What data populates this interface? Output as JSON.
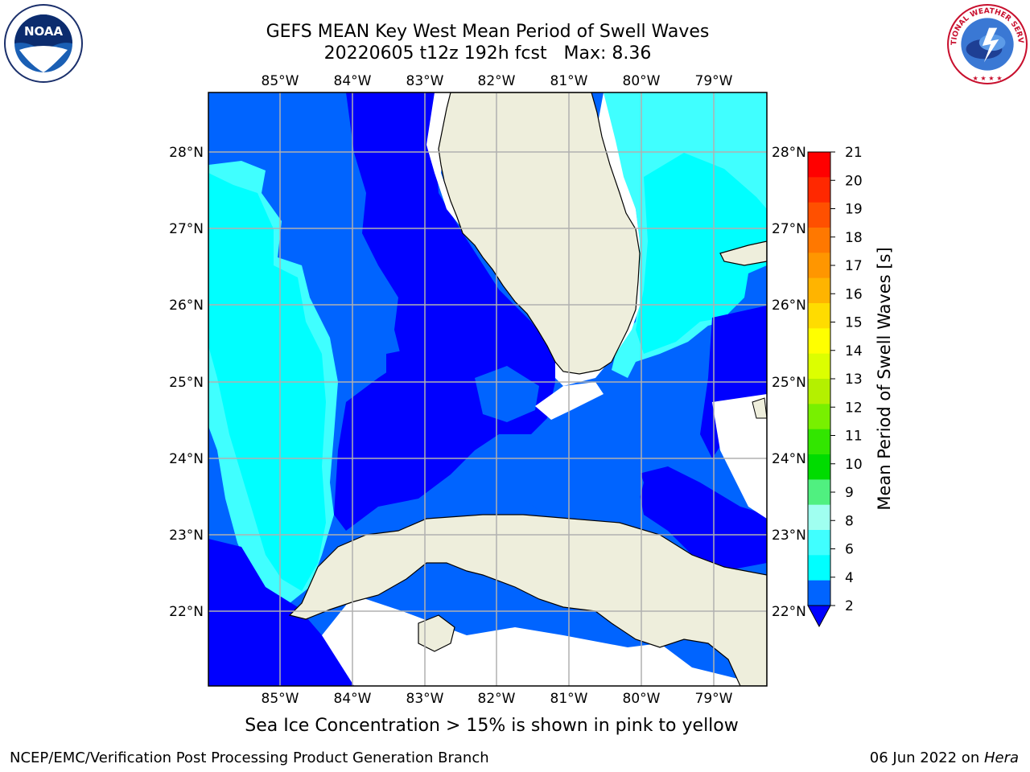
{
  "header": {
    "title_line1": "GEFS MEAN Key West Mean Period of Swell Waves",
    "title_line2": "20220605 t12z 192h fcst   Max: 8.36"
  },
  "logos": {
    "left": "noaa-logo",
    "left_text": "NOAA",
    "right": "national-weather-service-logo",
    "right_text": "NATIONAL WEATHER SERVICE"
  },
  "map": {
    "lon_labels": [
      "85°W",
      "84°W",
      "83°W",
      "82°W",
      "81°W",
      "80°W",
      "79°W"
    ],
    "lat_labels": [
      "28°N",
      "27°N",
      "26°N",
      "25°N",
      "24°N",
      "23°N",
      "22°N"
    ],
    "colors": {
      "land": "#eeeedc",
      "deep_blue": "#0000ff",
      "mid_blue": "#0064ff",
      "cyan": "#00ffff",
      "light_cyan": "#40ffff",
      "no_data": "#ffffff",
      "grid": "#b0b0b0"
    }
  },
  "colorbar": {
    "title": "Mean Period of Swell Waves [s]",
    "labels": [
      "21",
      "20",
      "19",
      "18",
      "17",
      "16",
      "15",
      "14",
      "13",
      "12",
      "11",
      "10",
      "9",
      "8",
      "6",
      "4",
      "2"
    ],
    "colors": [
      "#ff0000",
      "#ff2800",
      "#ff5000",
      "#ff7800",
      "#ff9600",
      "#ffb400",
      "#ffdc00",
      "#ffff00",
      "#dcff00",
      "#b4f000",
      "#78f000",
      "#32e600",
      "#00dc00",
      "#50f080",
      "#a0fff0",
      "#40ffff",
      "#00ffff",
      "#0064ff"
    ],
    "under_color": "#0000ff"
  },
  "footer": {
    "note": "Sea Ice Concentration > 15% is shown in pink to yellow",
    "credit_left": "NCEP/EMC/Verification Post Processing Product Generation Branch",
    "credit_date": "06 Jun 2022 on ",
    "credit_machine": "Hera"
  }
}
